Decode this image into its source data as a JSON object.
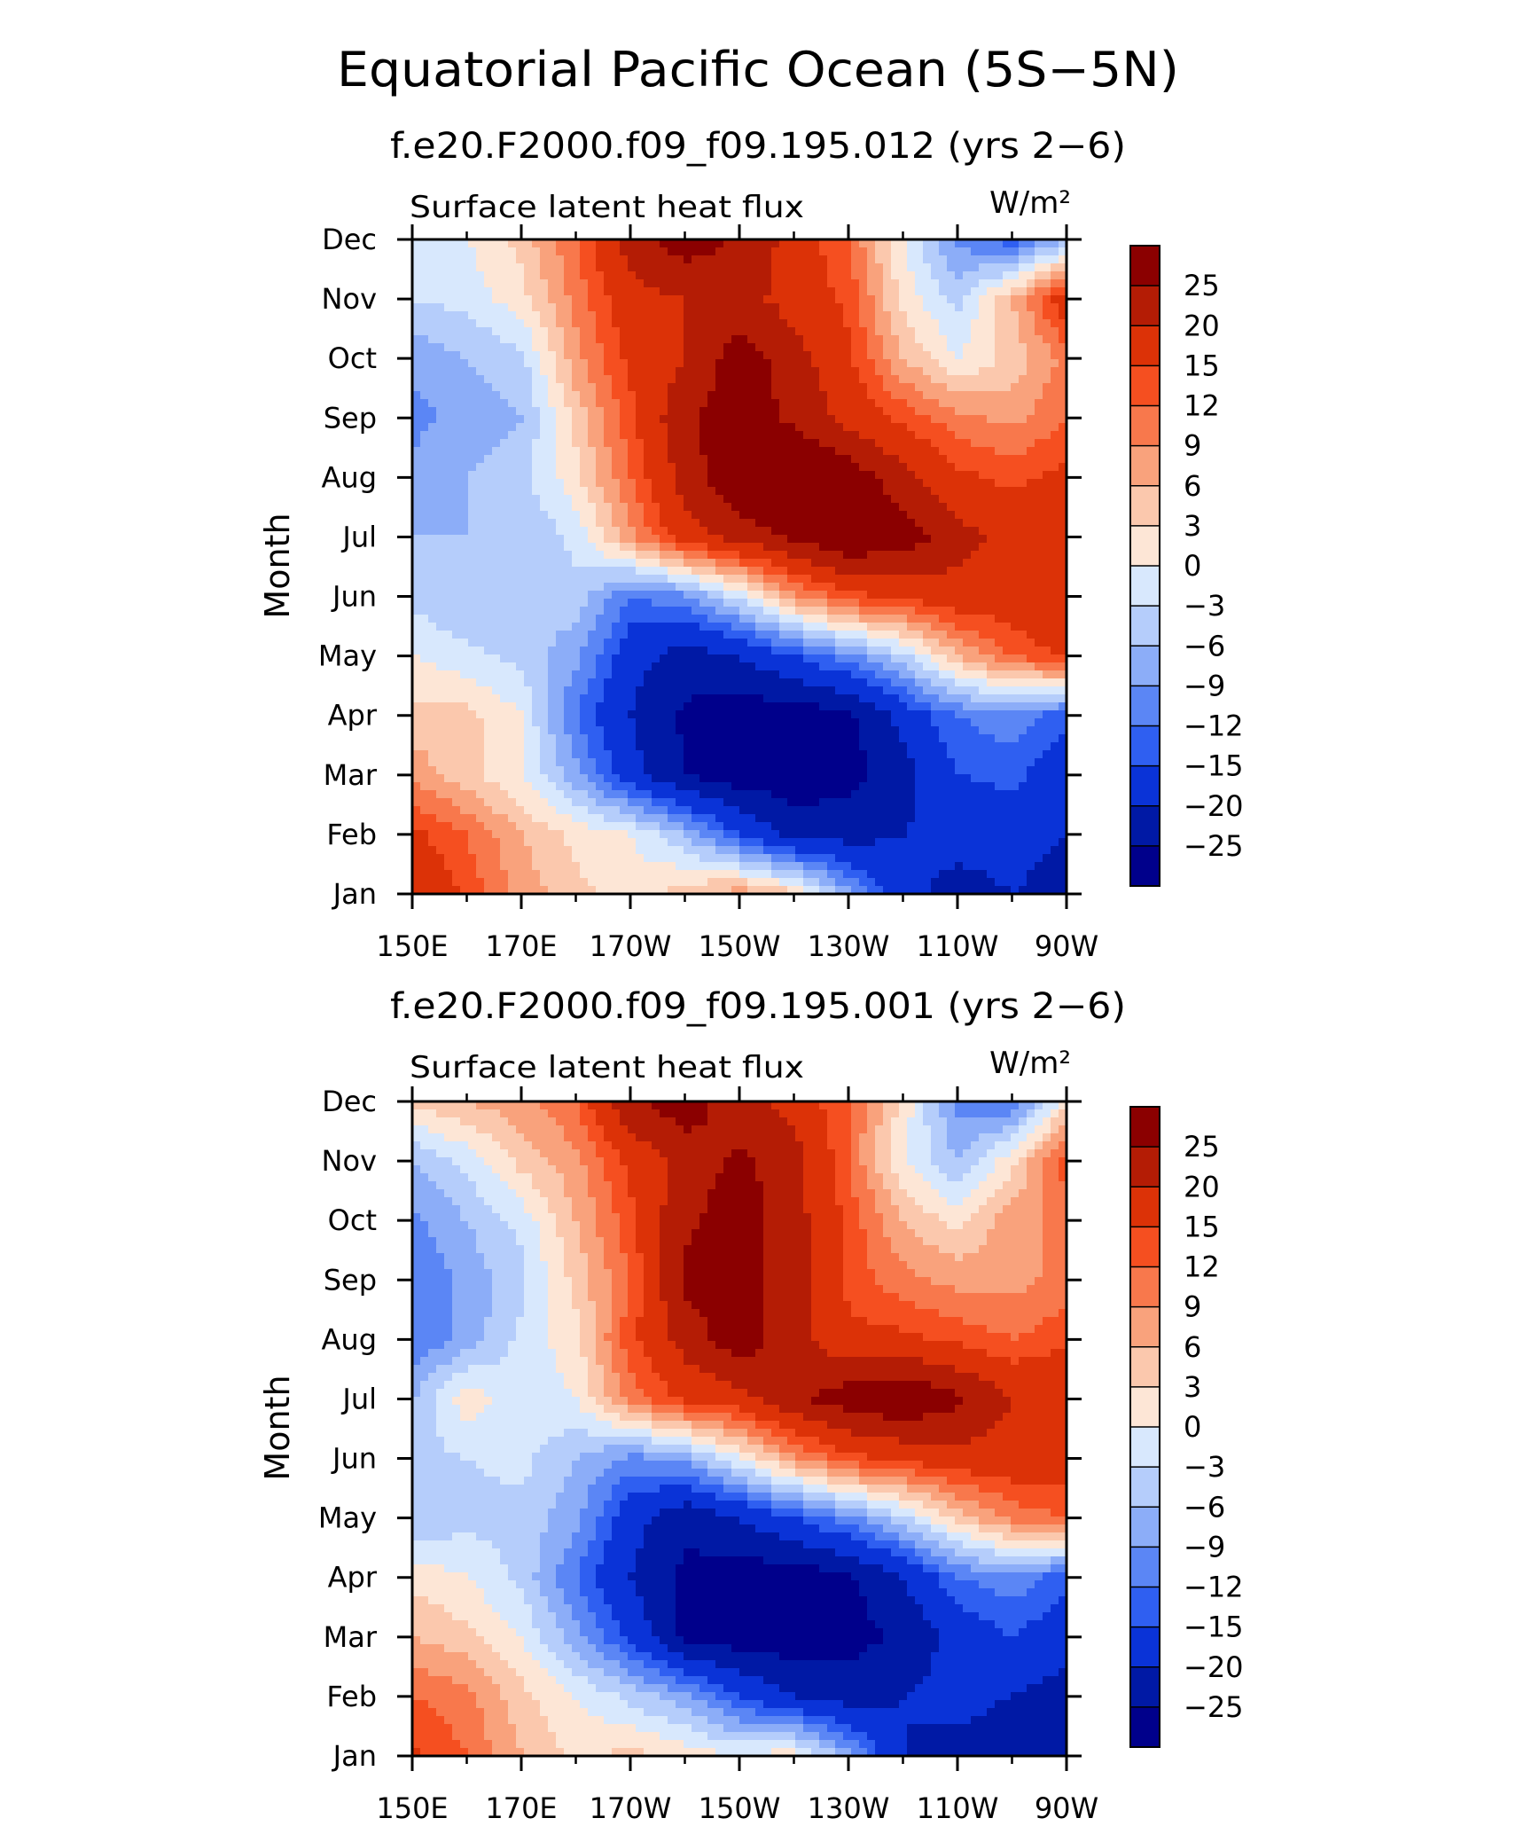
{
  "figure": {
    "title": "Equatorial Pacific Ocean (5S−5N)"
  },
  "colorbar": {
    "labels": [
      "25",
      "20",
      "15",
      "12",
      "9",
      "6",
      "3",
      "0",
      "−3",
      "−6",
      "−9",
      "−12",
      "−15",
      "−20",
      "−25"
    ],
    "colors": [
      "#8b0000",
      "#b41c05",
      "#dc3207",
      "#f54f20",
      "#f8784c",
      "#f9a27c",
      "#fbc8ad",
      "#fde6d6",
      "#d8e8fd",
      "#b5cdfb",
      "#8cadf8",
      "#5b86f5",
      "#2f5ff1",
      "#0a33d7",
      "#0019a5",
      "#00008b"
    ]
  },
  "chart_data": [
    {
      "type": "heatmap",
      "title": "f.e20.F2000.f09_f09.195.012 (yrs 2−6)",
      "subtitle_left": "Surface latent heat flux",
      "subtitle_right": "W/m²",
      "ylabel": "Month",
      "xlabel": "",
      "x_ticks": [
        "150E",
        "170E",
        "170W",
        "150W",
        "130W",
        "110W",
        "90W"
      ],
      "y_ticks": [
        "Jan",
        "Feb",
        "Mar",
        "Apr",
        "May",
        "Jun",
        "Jul",
        "Aug",
        "Sep",
        "Oct",
        "Nov",
        "Dec"
      ],
      "x_range_deg_east": [
        150,
        270
      ],
      "levels": [
        -25,
        -20,
        -15,
        -12,
        -9,
        -6,
        -3,
        0,
        3,
        6,
        9,
        12,
        15,
        20,
        25
      ],
      "x_grid_deg_east": [
        150,
        160,
        170,
        180,
        190,
        200,
        210,
        220,
        230,
        240,
        250,
        260,
        270
      ],
      "z_rows_by_month": [
        [
          20,
          14,
          8,
          4,
          1,
          5,
          8,
          4,
          -8,
          -18,
          -22,
          -20,
          -22
        ],
        [
          16,
          12,
          6,
          2,
          0,
          -6,
          -15,
          -22,
          -22,
          -20,
          -18,
          -18,
          -20
        ],
        [
          8,
          4,
          0,
          -8,
          -18,
          -25,
          -28,
          -28,
          -27,
          -22,
          -15,
          -14,
          -18
        ],
        [
          4,
          4,
          0,
          -12,
          -20,
          -26,
          -28,
          -28,
          -26,
          -18,
          -12,
          -10,
          -14
        ],
        [
          0,
          -2,
          -4,
          -8,
          -18,
          -22,
          -20,
          -15,
          -10,
          -4,
          6,
          12,
          16
        ],
        [
          -4,
          -6,
          -6,
          -4,
          -12,
          -10,
          -2,
          8,
          14,
          16,
          18,
          18,
          20
        ],
        [
          -6,
          -6,
          -6,
          -2,
          8,
          18,
          22,
          26,
          30,
          28,
          22,
          18,
          20
        ],
        [
          -8,
          -6,
          -4,
          2,
          12,
          22,
          30,
          32,
          28,
          22,
          16,
          14,
          16
        ],
        [
          -10,
          -8,
          -6,
          4,
          14,
          24,
          28,
          24,
          18,
          14,
          10,
          8,
          12
        ],
        [
          -8,
          -6,
          -4,
          8,
          16,
          20,
          28,
          22,
          16,
          6,
          0,
          4,
          10
        ],
        [
          -3,
          -2,
          2,
          10,
          18,
          20,
          22,
          18,
          14,
          2,
          -4,
          6,
          18
        ],
        [
          -2,
          0,
          4,
          12,
          22,
          28,
          24,
          18,
          12,
          0,
          -10,
          -14,
          -6
        ]
      ]
    },
    {
      "type": "heatmap",
      "title": "f.e20.F2000.f09_f09.195.001 (yrs 2−6)",
      "subtitle_left": "Surface latent heat flux",
      "subtitle_right": "W/m²",
      "ylabel": "Month",
      "xlabel": "",
      "x_ticks": [
        "150E",
        "170E",
        "170W",
        "150W",
        "130W",
        "110W",
        "90W"
      ],
      "y_ticks": [
        "Jan",
        "Feb",
        "Mar",
        "Apr",
        "May",
        "Jun",
        "Jul",
        "Aug",
        "Sep",
        "Oct",
        "Nov",
        "Dec"
      ],
      "x_range_deg_east": [
        150,
        270
      ],
      "levels": [
        -25,
        -20,
        -15,
        -12,
        -9,
        -6,
        -3,
        0,
        3,
        6,
        9,
        12,
        15,
        20,
        25
      ],
      "x_grid_deg_east": [
        150,
        160,
        170,
        180,
        190,
        200,
        210,
        220,
        230,
        240,
        250,
        260,
        270
      ],
      "z_rows_by_month": [
        [
          16,
          12,
          6,
          2,
          4,
          2,
          0,
          2,
          -8,
          -20,
          -22,
          -24,
          -24
        ],
        [
          12,
          10,
          4,
          0,
          -4,
          -8,
          -15,
          -20,
          -22,
          -20,
          -18,
          -20,
          -22
        ],
        [
          6,
          4,
          0,
          -8,
          -16,
          -26,
          -28,
          -28,
          -27,
          -24,
          -18,
          -15,
          -18
        ],
        [
          2,
          0,
          -4,
          -12,
          -20,
          -26,
          -28,
          -28,
          -26,
          -20,
          -12,
          -10,
          -14
        ],
        [
          -6,
          -4,
          -4,
          -8,
          -18,
          -24,
          -20,
          -15,
          -10,
          -4,
          4,
          10,
          12
        ],
        [
          -4,
          -3,
          -2,
          -6,
          -10,
          -8,
          0,
          8,
          14,
          16,
          18,
          18,
          18
        ],
        [
          -6,
          2,
          -2,
          0,
          10,
          16,
          18,
          24,
          28,
          30,
          26,
          20,
          20
        ],
        [
          -12,
          -8,
          -2,
          2,
          14,
          22,
          28,
          22,
          16,
          16,
          14,
          12,
          14
        ],
        [
          -12,
          -8,
          -4,
          4,
          12,
          26,
          28,
          22,
          14,
          10,
          8,
          8,
          10
        ],
        [
          -10,
          -6,
          -2,
          6,
          14,
          24,
          28,
          22,
          14,
          6,
          2,
          8,
          10
        ],
        [
          -6,
          -2,
          4,
          8,
          16,
          22,
          26,
          22,
          12,
          0,
          -6,
          2,
          14
        ],
        [
          4,
          6,
          8,
          12,
          24,
          28,
          22,
          18,
          12,
          2,
          -10,
          -12,
          2
        ]
      ]
    }
  ]
}
